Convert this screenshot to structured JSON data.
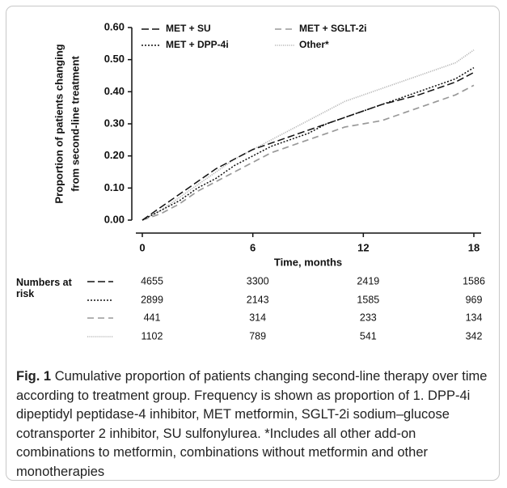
{
  "chart_data": {
    "type": "line",
    "ylabel": [
      "Proportion of patients changing",
      "from second-line treatment"
    ],
    "xlabel": "Time, months",
    "x": [
      0,
      1,
      2,
      3,
      4,
      5,
      6,
      7,
      8,
      9,
      10,
      11,
      12,
      13,
      14,
      15,
      16,
      17,
      18
    ],
    "xlim": [
      0,
      18
    ],
    "xticks": [
      0,
      6,
      12,
      18
    ],
    "ylim": [
      0,
      0.6
    ],
    "yticks": [
      {
        "value": 0,
        "label": "0.00"
      },
      {
        "value": 0.1,
        "label": "0.10"
      },
      {
        "value": 0.2,
        "label": "0.20"
      },
      {
        "value": 0.3,
        "label": "0.30"
      },
      {
        "value": 0.4,
        "label": "0.40"
      },
      {
        "value": 0.5,
        "label": "0.50"
      },
      {
        "value": 0.6,
        "label": "0.60"
      }
    ],
    "series": [
      {
        "name": "MET + SU",
        "color": "#111111",
        "dash": "dashed",
        "values": [
          0,
          0.04,
          0.08,
          0.12,
          0.16,
          0.19,
          0.22,
          0.24,
          0.26,
          0.28,
          0.3,
          0.32,
          0.34,
          0.36,
          0.375,
          0.39,
          0.41,
          0.43,
          0.46
        ]
      },
      {
        "name": "MET + DPP-4i",
        "color": "#111111",
        "dash": "dotted",
        "values": [
          0,
          0.03,
          0.06,
          0.1,
          0.13,
          0.17,
          0.2,
          0.23,
          0.25,
          0.27,
          0.3,
          0.32,
          0.34,
          0.36,
          0.38,
          0.4,
          0.42,
          0.44,
          0.475
        ]
      },
      {
        "name": "MET + SGLT-2i",
        "color": "#999999",
        "dash": "dashed",
        "values": [
          0,
          0.02,
          0.05,
          0.09,
          0.12,
          0.15,
          0.18,
          0.21,
          0.23,
          0.25,
          0.27,
          0.29,
          0.3,
          0.31,
          0.33,
          0.35,
          0.37,
          0.39,
          0.42
        ]
      },
      {
        "name": "Other*",
        "color": "#b8b8b8",
        "dash": "dotted",
        "values": [
          0,
          0.03,
          0.07,
          0.11,
          0.15,
          0.19,
          0.22,
          0.25,
          0.28,
          0.31,
          0.34,
          0.37,
          0.39,
          0.41,
          0.43,
          0.45,
          0.47,
          0.49,
          0.53
        ]
      }
    ],
    "risk_table": {
      "label": "Numbers at risk",
      "rows": [
        [
          4655,
          3300,
          2419,
          1586
        ],
        [
          2899,
          2143,
          1585,
          969
        ],
        [
          441,
          314,
          233,
          134
        ],
        [
          1102,
          789,
          541,
          342
        ]
      ]
    }
  },
  "caption": {
    "label": "Fig. 1",
    "text": "Cumulative proportion of patients changing second-line therapy over time according to treatment group. Frequency is shown as proportion of 1. DPP-4i dipeptidyl peptidase-4 inhibitor, MET metformin, SGLT-2i sodium–glucose cotransporter 2 inhibitor, SU sulfonylurea. *Includes all other add-on combinations to metformin, combinations without metformin and other monotherapies"
  }
}
